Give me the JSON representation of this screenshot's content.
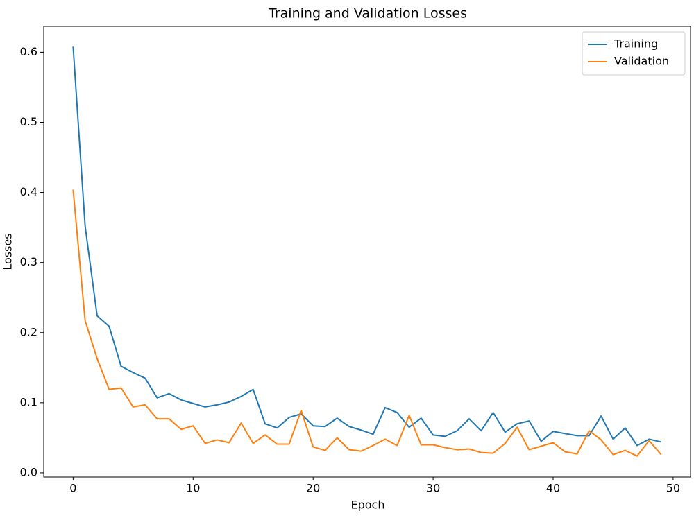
{
  "chart_data": {
    "type": "line",
    "title": "Training and Validation Losses",
    "x_label": "Epoch",
    "y_label": "Losses",
    "x": [
      0,
      1,
      2,
      3,
      4,
      5,
      6,
      7,
      8,
      9,
      10,
      11,
      12,
      13,
      14,
      15,
      16,
      17,
      18,
      19,
      20,
      21,
      22,
      23,
      24,
      25,
      26,
      27,
      28,
      29,
      30,
      31,
      32,
      33,
      34,
      35,
      36,
      37,
      38,
      39,
      40,
      41,
      42,
      43,
      44,
      45,
      46,
      47,
      48,
      49
    ],
    "series": [
      {
        "name": "Training",
        "color": "#1f77b4",
        "values": [
          0.608,
          0.352,
          0.224,
          0.209,
          0.152,
          0.143,
          0.135,
          0.107,
          0.113,
          0.104,
          0.099,
          0.094,
          0.097,
          0.101,
          0.109,
          0.119,
          0.07,
          0.064,
          0.079,
          0.084,
          0.067,
          0.066,
          0.078,
          0.066,
          0.061,
          0.055,
          0.093,
          0.086,
          0.065,
          0.078,
          0.054,
          0.052,
          0.06,
          0.077,
          0.06,
          0.086,
          0.058,
          0.07,
          0.074,
          0.045,
          0.059,
          0.056,
          0.053,
          0.053,
          0.081,
          0.048,
          0.064,
          0.039,
          0.048,
          0.044
        ]
      },
      {
        "name": "Validation",
        "color": "#ff7f0e",
        "values": [
          0.404,
          0.217,
          0.163,
          0.119,
          0.121,
          0.094,
          0.097,
          0.077,
          0.077,
          0.062,
          0.067,
          0.042,
          0.047,
          0.043,
          0.071,
          0.042,
          0.054,
          0.041,
          0.041,
          0.089,
          0.037,
          0.032,
          0.05,
          0.033,
          0.031,
          0.039,
          0.048,
          0.039,
          0.082,
          0.04,
          0.04,
          0.036,
          0.033,
          0.034,
          0.029,
          0.028,
          0.042,
          0.065,
          0.033,
          0.038,
          0.043,
          0.03,
          0.027,
          0.06,
          0.047,
          0.026,
          0.032,
          0.024,
          0.046,
          0.026
        ]
      }
    ],
    "xlim": [
      -2.45,
      51.45
    ],
    "xticks": [
      0,
      10,
      20,
      30,
      40,
      50
    ],
    "ylim": [
      -0.006,
      0.637
    ],
    "yticks": [
      {
        "value": 0,
        "label": "0.0"
      },
      0.1,
      0.2,
      0.3,
      0.4,
      0.5,
      0.6
    ],
    "grid": false,
    "legend": "upper right"
  }
}
